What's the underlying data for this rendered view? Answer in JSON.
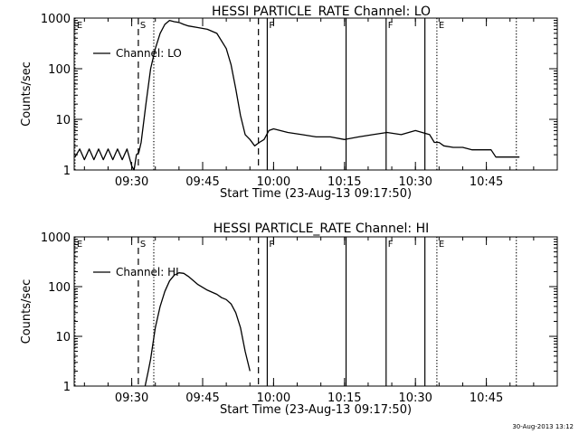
{
  "chart_data": [
    {
      "type": "line",
      "title": "HESSI PARTICLE_RATE Channel: LO",
      "ylabel": "Counts/sec",
      "xlabel": "Start Time (23-Aug-13 09:17:50)",
      "xlim": [
        "09:17:50",
        "11:00:00"
      ],
      "ylim": [
        1,
        1000
      ],
      "yscale": "log",
      "xticks": [
        "09:30",
        "09:45",
        "10:00",
        "10:15",
        "10:30",
        "10:45"
      ],
      "yticks": [
        "1",
        "10",
        "100",
        "1000"
      ],
      "legend": {
        "position": "top-left",
        "entries": [
          "Channel: LO"
        ]
      },
      "markers": [
        {
          "time": "09:18:00",
          "style": "dotted",
          "label": "E"
        },
        {
          "time": "09:31:24",
          "style": "dashed",
          "label": "S"
        },
        {
          "time": "09:34:40",
          "style": "dotted",
          "label": ""
        },
        {
          "time": "09:56:48",
          "style": "dashed",
          "label": ""
        },
        {
          "time": "09:58:40",
          "style": "solid",
          "label": "P"
        },
        {
          "time": "10:15:20",
          "style": "solid",
          "label": ""
        },
        {
          "time": "10:23:48",
          "style": "solid",
          "label": "F"
        },
        {
          "time": "10:32:00",
          "style": "solid",
          "label": ""
        },
        {
          "time": "10:34:32",
          "style": "dotted",
          "label": "E"
        },
        {
          "time": "10:51:20",
          "style": "dotted",
          "label": ""
        }
      ],
      "series": [
        {
          "name": "Channel: LO",
          "x": [
            "09:18:00",
            "09:19:00",
            "09:20:00",
            "09:21:00",
            "09:22:00",
            "09:23:00",
            "09:24:00",
            "09:25:00",
            "09:26:00",
            "09:27:00",
            "09:28:00",
            "09:29:00",
            "09:30:00",
            "09:30:30",
            "09:31:00",
            "09:31:30",
            "09:32:00",
            "09:33:00",
            "09:34:00",
            "09:35:00",
            "09:36:00",
            "09:37:00",
            "09:38:00",
            "09:39:00",
            "09:40:00",
            "09:41:00",
            "09:42:00",
            "09:44:00",
            "09:46:00",
            "09:48:00",
            "09:50:00",
            "09:51:00",
            "09:52:00",
            "09:53:00",
            "09:54:00",
            "09:55:00",
            "09:56:00",
            "09:57:00",
            "09:58:00",
            "09:59:00",
            "10:00:00",
            "10:03:00",
            "10:06:00",
            "10:09:00",
            "10:12:00",
            "10:15:00",
            "10:18:00",
            "10:21:00",
            "10:24:00",
            "10:27:00",
            "10:30:00",
            "10:33:00",
            "10:34:00",
            "10:35:00",
            "10:36:00",
            "10:38:00",
            "10:40:00",
            "10:42:00",
            "10:44:00",
            "10:46:00",
            "10:47:00",
            "10:48:00",
            "10:50:00",
            "10:52:00"
          ],
          "y": [
            1.8,
            2.6,
            1.6,
            2.6,
            1.6,
            2.6,
            1.6,
            2.6,
            1.6,
            2.6,
            1.6,
            2.6,
            1.2,
            1.0,
            2.0,
            2.2,
            3.5,
            20,
            100,
            250,
            500,
            750,
            900,
            850,
            820,
            750,
            700,
            650,
            600,
            500,
            250,
            120,
            40,
            12,
            5,
            4,
            3,
            3.5,
            4,
            6,
            6.5,
            5.5,
            5,
            4.5,
            4.5,
            4,
            4.5,
            5,
            5.5,
            5,
            6,
            5,
            3.5,
            3.5,
            3,
            2.8,
            2.8,
            2.5,
            2.5,
            2.5,
            1.8,
            1.8,
            1.8,
            1.8
          ]
        }
      ]
    },
    {
      "type": "line",
      "title": "HESSI PARTICLE_RATE Channel: HI",
      "ylabel": "Counts/sec",
      "xlabel": "Start Time (23-Aug-13 09:17:50)",
      "xlim": [
        "09:17:50",
        "11:00:00"
      ],
      "ylim": [
        1,
        1000
      ],
      "yscale": "log",
      "xticks": [
        "09:30",
        "09:45",
        "10:00",
        "10:15",
        "10:30",
        "10:45"
      ],
      "yticks": [
        "1",
        "10",
        "100",
        "1000"
      ],
      "legend": {
        "position": "top-left",
        "entries": [
          "Channel: HI"
        ]
      },
      "markers": [
        {
          "time": "09:18:00",
          "style": "dotted",
          "label": "E"
        },
        {
          "time": "09:31:24",
          "style": "dashed",
          "label": "S"
        },
        {
          "time": "09:34:40",
          "style": "dotted",
          "label": ""
        },
        {
          "time": "09:56:48",
          "style": "dashed",
          "label": ""
        },
        {
          "time": "09:58:40",
          "style": "solid",
          "label": "P"
        },
        {
          "time": "10:15:20",
          "style": "solid",
          "label": ""
        },
        {
          "time": "10:23:48",
          "style": "solid",
          "label": "F"
        },
        {
          "time": "10:32:00",
          "style": "solid",
          "label": ""
        },
        {
          "time": "10:34:32",
          "style": "dotted",
          "label": "E"
        },
        {
          "time": "10:51:20",
          "style": "dotted",
          "label": ""
        }
      ],
      "series": [
        {
          "name": "Channel: HI",
          "x": [
            "09:32:50",
            "09:33:30",
            "09:34:00",
            "09:35:00",
            "09:36:00",
            "09:37:00",
            "09:38:00",
            "09:39:00",
            "09:40:00",
            "09:41:00",
            "09:42:00",
            "09:44:00",
            "09:46:00",
            "09:48:00",
            "09:49:00",
            "09:50:00",
            "09:51:00",
            "09:52:00",
            "09:53:00",
            "09:54:00",
            "09:55:00"
          ],
          "y": [
            1,
            2,
            3.5,
            15,
            40,
            80,
            130,
            170,
            190,
            185,
            160,
            110,
            85,
            70,
            60,
            55,
            45,
            30,
            15,
            5,
            2
          ]
        }
      ]
    }
  ],
  "footer": {
    "timestamp": "30-Aug-2013 13:12"
  }
}
